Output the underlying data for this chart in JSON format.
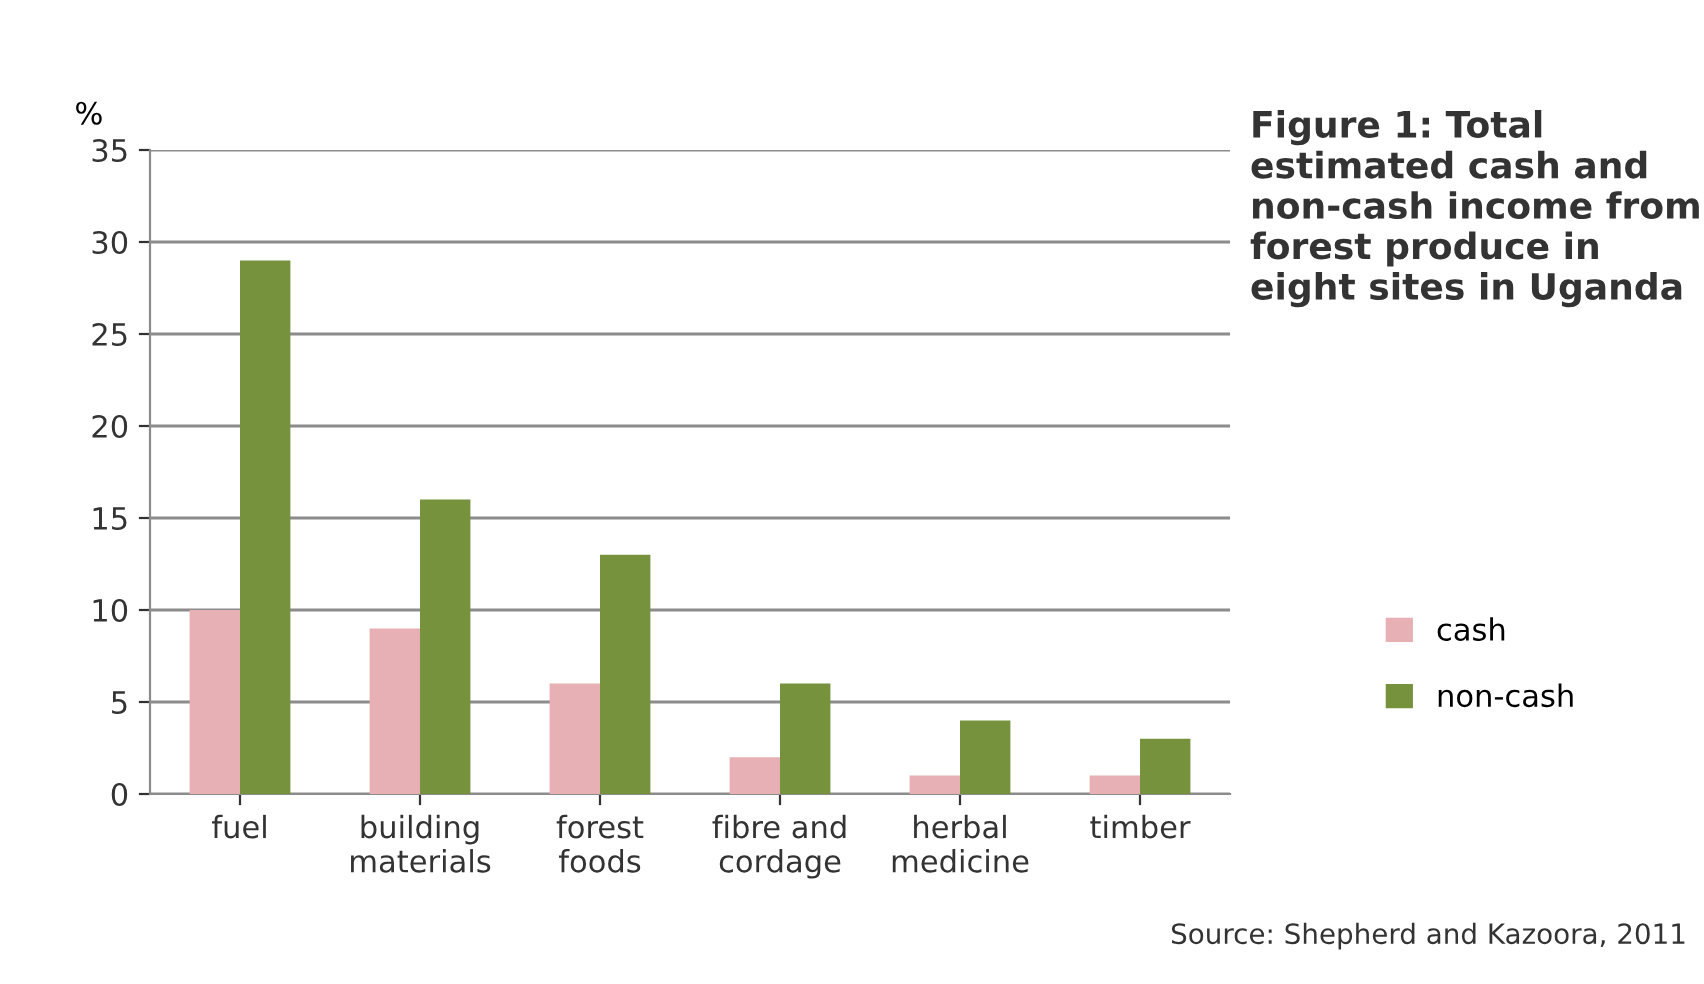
{
  "chart_data": {
    "type": "bar",
    "title": "Figure 1: Total estimated cash and non-cash income from forest produce in eight sites in Uganda",
    "ylabel": "%",
    "categories": [
      "fuel",
      "building materials",
      "forest foods",
      "fibre and cordage",
      "herbal medicine",
      "timber"
    ],
    "series": [
      {
        "name": "cash",
        "color": "#e6b0b4",
        "values": [
          10,
          9,
          6,
          2,
          1,
          1
        ]
      },
      {
        "name": "non-cash",
        "color": "#76923c",
        "values": [
          29,
          16,
          13,
          6,
          4,
          3
        ]
      }
    ],
    "ylim": [
      0,
      35
    ],
    "yticks": [
      0,
      5,
      10,
      15,
      20,
      25,
      30,
      35
    ],
    "grid": "y",
    "legend": "right",
    "annotations": [
      "Source: Shepherd and Kazoora, 2011"
    ]
  }
}
